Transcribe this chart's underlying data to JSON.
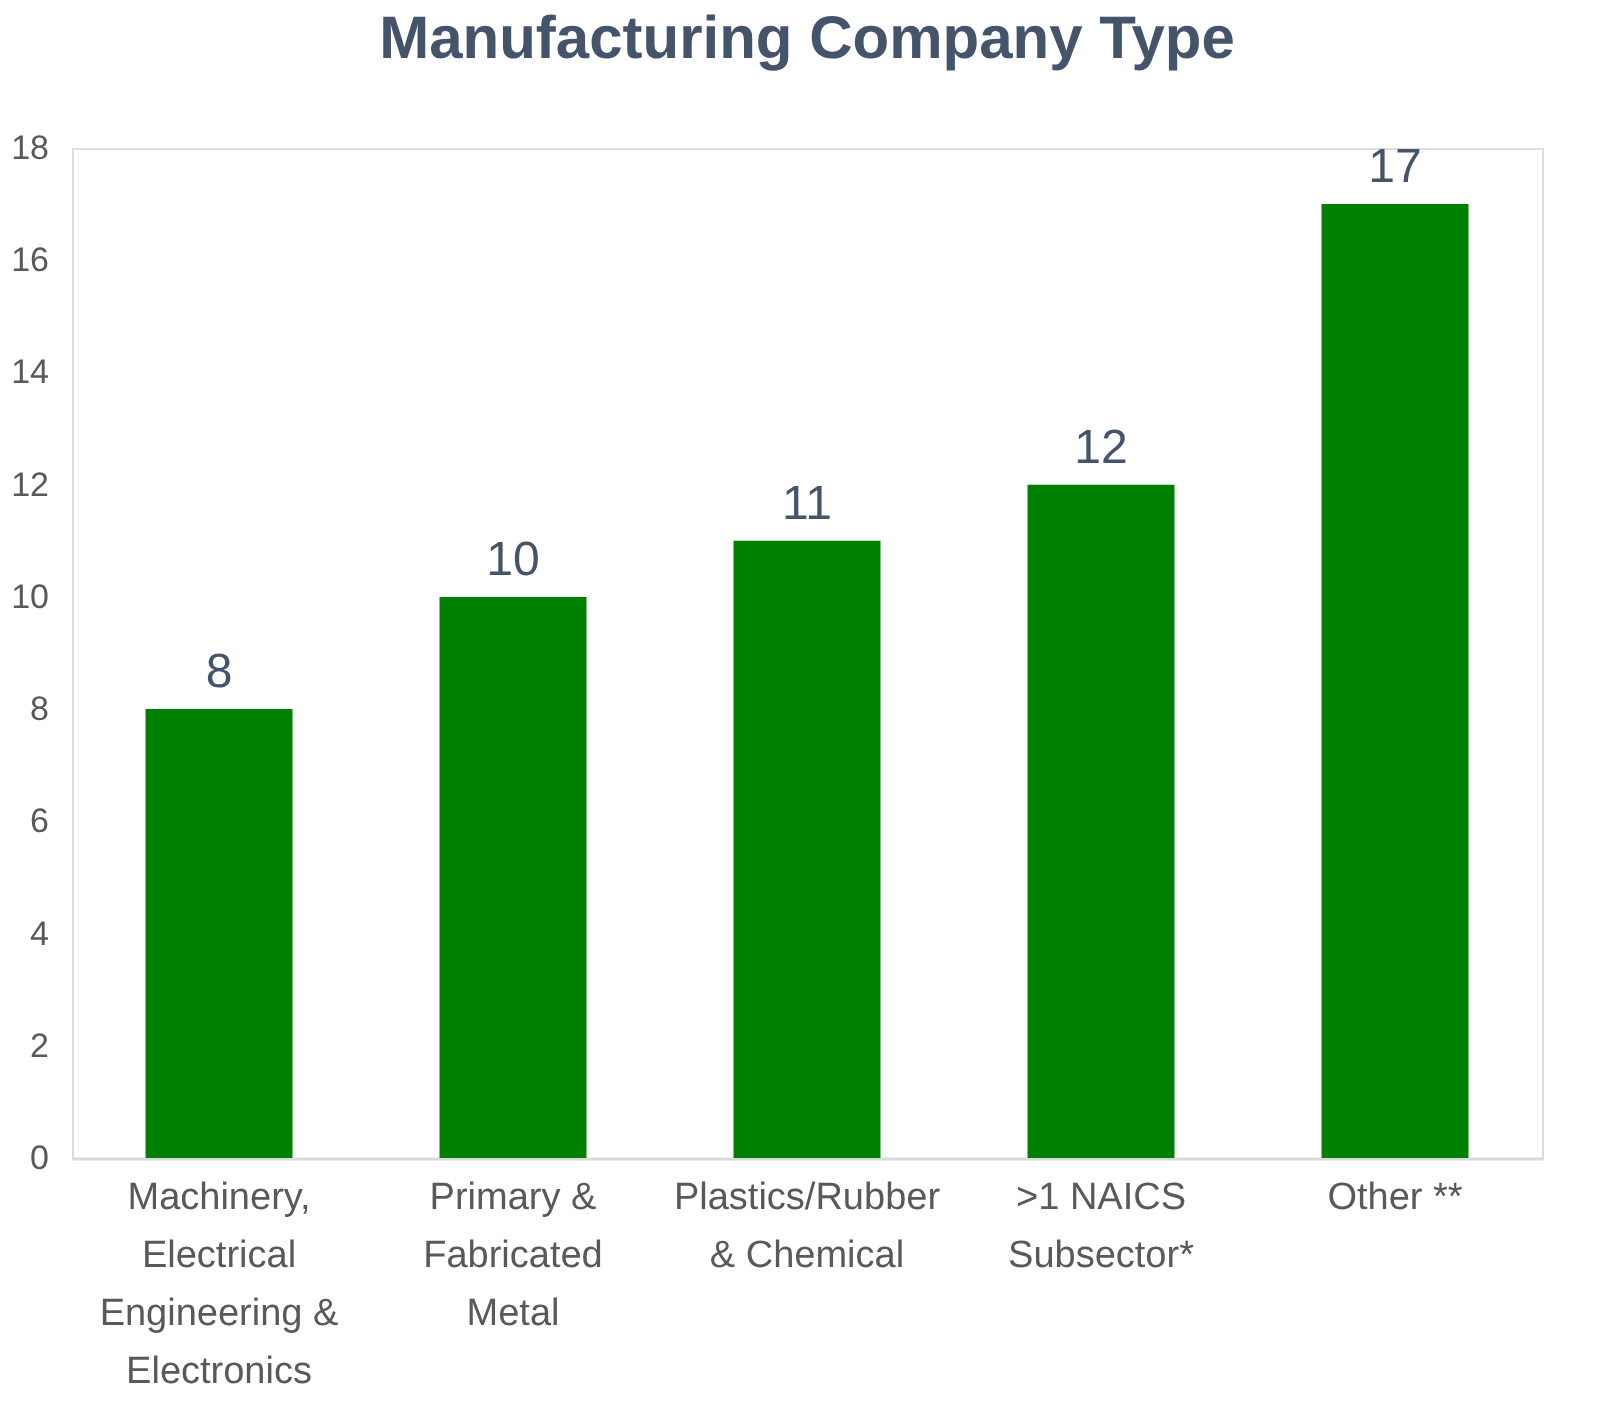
{
  "chart_data": {
    "type": "bar",
    "title": "Manufacturing Company Type",
    "categories": [
      "Machinery,\nElectrical\nEngineering &\nElectronics",
      "Primary &\nFabricated\nMetal",
      "Plastics/Rubber\n& Chemical",
      ">1 NAICS\nSubsector*",
      "Other **"
    ],
    "values": [
      8,
      10,
      11,
      12,
      17
    ],
    "color": "#008000",
    "ylim": [
      0,
      18
    ],
    "yticks": [
      0,
      2,
      4,
      6,
      8,
      10,
      12,
      14,
      16,
      18
    ],
    "grid": false,
    "data_labels": true
  }
}
